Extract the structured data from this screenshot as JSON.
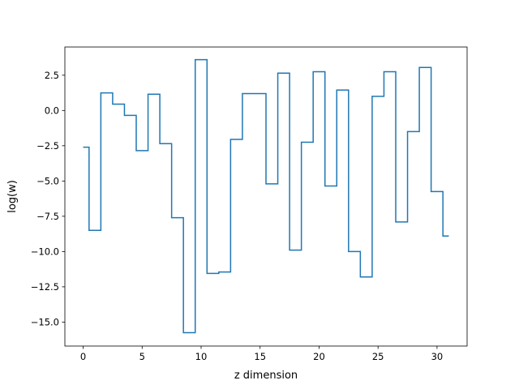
{
  "chart_data": {
    "type": "line",
    "drawstyle": "steps-mid",
    "title": "",
    "xlabel": "z dimension",
    "ylabel": "log(w)",
    "xlim": [
      -1.55,
      32.55
    ],
    "ylim": [
      -16.7,
      4.5
    ],
    "x_ticks": [
      0,
      5,
      10,
      15,
      20,
      25,
      30
    ],
    "x_tick_labels": [
      "0",
      "5",
      "10",
      "15",
      "20",
      "25",
      "30"
    ],
    "y_ticks": [
      2.5,
      0.0,
      -2.5,
      -5.0,
      -7.5,
      -10.0,
      -12.5,
      -15.0
    ],
    "y_tick_labels": [
      "2.5",
      "0.0",
      "−2.5",
      "−5.0",
      "−7.5",
      "−10.0",
      "−12.5",
      "−15.0"
    ],
    "grid": false,
    "series": [
      {
        "color": "#1f77b4",
        "x": [
          0,
          1,
          2,
          3,
          4,
          5,
          6,
          7,
          8,
          9,
          10,
          11,
          12,
          13,
          14,
          15,
          16,
          17,
          18,
          19,
          20,
          21,
          22,
          23,
          24,
          25,
          26,
          27,
          28,
          29,
          30,
          31
        ],
        "values": [
          -2.6,
          -8.5,
          1.25,
          0.45,
          -0.35,
          -2.85,
          1.15,
          -2.35,
          -7.6,
          -15.75,
          3.6,
          -11.55,
          -11.45,
          -2.05,
          1.2,
          1.2,
          -5.2,
          2.65,
          -9.9,
          -2.25,
          2.75,
          -5.35,
          1.45,
          -10.0,
          -11.8,
          1.0,
          2.75,
          -7.9,
          -1.5,
          3.05,
          -5.75,
          -8.9
        ]
      }
    ]
  }
}
